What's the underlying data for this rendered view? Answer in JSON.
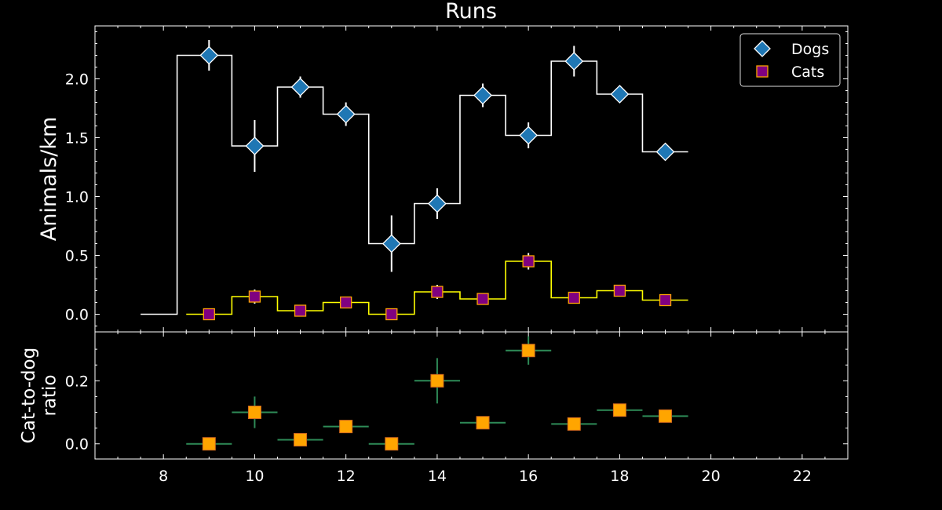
{
  "chart_data": {
    "type": "scatter",
    "title": "Runs",
    "x_ticks": [
      8,
      10,
      12,
      14,
      16,
      18,
      20,
      22
    ],
    "xlim": [
      6.5,
      23.0
    ],
    "top": {
      "ylabel": "Animals/km",
      "ylim": [
        -0.15,
        2.45
      ],
      "y_ticks": [
        0.0,
        0.5,
        1.0,
        1.5,
        2.0
      ],
      "y_tick_labels": [
        "0.0",
        "0.5",
        "1.0",
        "1.5",
        "2.0"
      ],
      "legend_position": "top-right",
      "series": [
        {
          "name": "Dogs",
          "marker": "diamond",
          "marker_color": "#1f77b4",
          "line_color": "#ffffff",
          "x": [
            9,
            10,
            11,
            12,
            13,
            14,
            15,
            16,
            17,
            18,
            19
          ],
          "y": [
            2.2,
            1.43,
            1.93,
            1.7,
            0.6,
            0.94,
            1.86,
            1.52,
            2.15,
            1.87,
            1.38
          ],
          "yerr": [
            0.13,
            0.22,
            0.09,
            0.1,
            0.24,
            0.13,
            0.1,
            0.11,
            0.13,
            0.05,
            0.04
          ],
          "step_edges": [
            7.5,
            8.3,
            8.3,
            9.5,
            10.5,
            11.5,
            12.5,
            13.5,
            14.5,
            15.5,
            16.5,
            17.5,
            18.5,
            19.5
          ],
          "step_values": [
            0.0,
            2.2,
            2.2,
            1.43,
            1.93,
            1.7,
            0.6,
            0.94,
            1.86,
            1.52,
            2.15,
            1.87,
            1.38
          ]
        },
        {
          "name": "Cats",
          "marker": "square",
          "marker_color": "#800080",
          "marker_edge": "#ffa500",
          "line_color": "#ffff00",
          "x": [
            9,
            10,
            11,
            12,
            13,
            14,
            15,
            16,
            17,
            18,
            19
          ],
          "y": [
            0.0,
            0.15,
            0.03,
            0.1,
            0.0,
            0.19,
            0.13,
            0.45,
            0.14,
            0.2,
            0.12
          ],
          "yerr": [
            0.0,
            0.06,
            0.02,
            0.03,
            0.0,
            0.06,
            0.03,
            0.07,
            0.03,
            0.04,
            0.02
          ],
          "step_edges": [
            8.5,
            9.5,
            10.5,
            11.5,
            12.5,
            13.5,
            14.5,
            15.5,
            16.5,
            17.5,
            18.5,
            19.5
          ],
          "step_values": [
            0.0,
            0.15,
            0.03,
            0.1,
            0.0,
            0.19,
            0.13,
            0.45,
            0.14,
            0.2,
            0.12
          ]
        }
      ]
    },
    "bottom": {
      "ylabel_lines": [
        "Cat-to-dog",
        "ratio"
      ],
      "ylim": [
        -0.048,
        0.355
      ],
      "y_ticks": [
        0.0,
        0.2
      ],
      "y_tick_labels": [
        "0.0",
        "0.2"
      ],
      "series": {
        "marker": "square",
        "marker_color": "#ffa500",
        "marker_edge": "#d2691e",
        "errbar_color": "#2e8b57",
        "x": [
          9,
          10,
          11,
          12,
          13,
          14,
          15,
          16,
          17,
          18,
          19
        ],
        "y": [
          0.0,
          0.1,
          0.013,
          0.055,
          0.0,
          0.2,
          0.067,
          0.296,
          0.063,
          0.107,
          0.088
        ],
        "xerr": [
          0.5,
          0.5,
          0.5,
          0.5,
          0.5,
          0.5,
          0.5,
          0.5,
          0.5,
          0.5,
          0.5
        ],
        "yerr": [
          0.0,
          0.05,
          0.0,
          0.0,
          0.0,
          0.072,
          0.0,
          0.045,
          0.0,
          0.0,
          0.0
        ]
      }
    }
  }
}
